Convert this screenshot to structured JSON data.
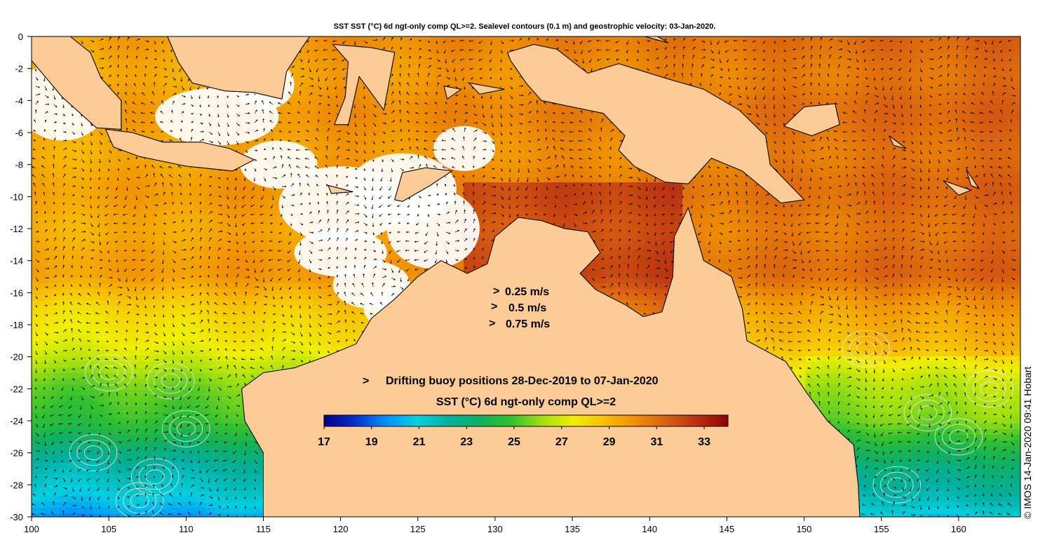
{
  "title": "SST SST (°C) 6d ngt-only comp QL>=2. Sealevel contours (0.1 m) and geostrophic velocity: 03-Jan-2020.",
  "credit": "© IMOS 14-Jan-2020 09:41 Hobart",
  "colors": {
    "land": "#fccb96",
    "cloud": "#ffffff",
    "arrow": "#000000",
    "contour": "#e8e8e8",
    "buoy_marker": "#d020d0"
  },
  "axes": {
    "lon_range": [
      100,
      164
    ],
    "lat_range": [
      -30,
      0
    ],
    "lon_ticks": [
      100,
      105,
      110,
      115,
      120,
      125,
      130,
      135,
      140,
      145,
      150,
      155,
      160
    ],
    "lat_ticks": [
      0,
      -2,
      -4,
      -6,
      -8,
      -10,
      -12,
      -14,
      -16,
      -18,
      -20,
      -22,
      -24,
      -26,
      -28,
      -30
    ],
    "lon_tick_labels": [
      "100",
      "105",
      "110",
      "115",
      "120",
      "125",
      "130",
      "135",
      "140",
      "145",
      "150",
      "155",
      "160"
    ],
    "lat_tick_labels": [
      "0",
      "-2",
      "-4",
      "-6",
      "-8",
      "-10",
      "-12",
      "-14",
      "-16",
      "-18",
      "-20",
      "-22",
      "-24",
      "-26",
      "-28",
      "-30"
    ]
  },
  "velocity_legend": {
    "entries": [
      "0.25 m/s",
      "0.5 m/s",
      "0.75 m/s"
    ],
    "marker_glyph": ">"
  },
  "buoy_legend": {
    "marker_glyph": ">",
    "label": "Drifting buoy positions 28-Dec-2019 to 07-Jan-2020"
  },
  "colorbar": {
    "title": "SST (°C) 6d ngt-only comp QL>=2",
    "range": [
      17,
      34
    ],
    "tick_values": [
      17,
      19,
      21,
      23,
      25,
      27,
      29,
      31,
      33
    ],
    "tick_labels": [
      "17",
      "19",
      "21",
      "23",
      "25",
      "27",
      "29",
      "31",
      "33"
    ],
    "stops": [
      "#00008b",
      "#0030d0",
      "#0090ff",
      "#00d0e0",
      "#00b0a0",
      "#10b060",
      "#30c030",
      "#a0e010",
      "#f0f000",
      "#f8c000",
      "#f09000",
      "#d86010",
      "#b83010",
      "#900000"
    ]
  }
}
